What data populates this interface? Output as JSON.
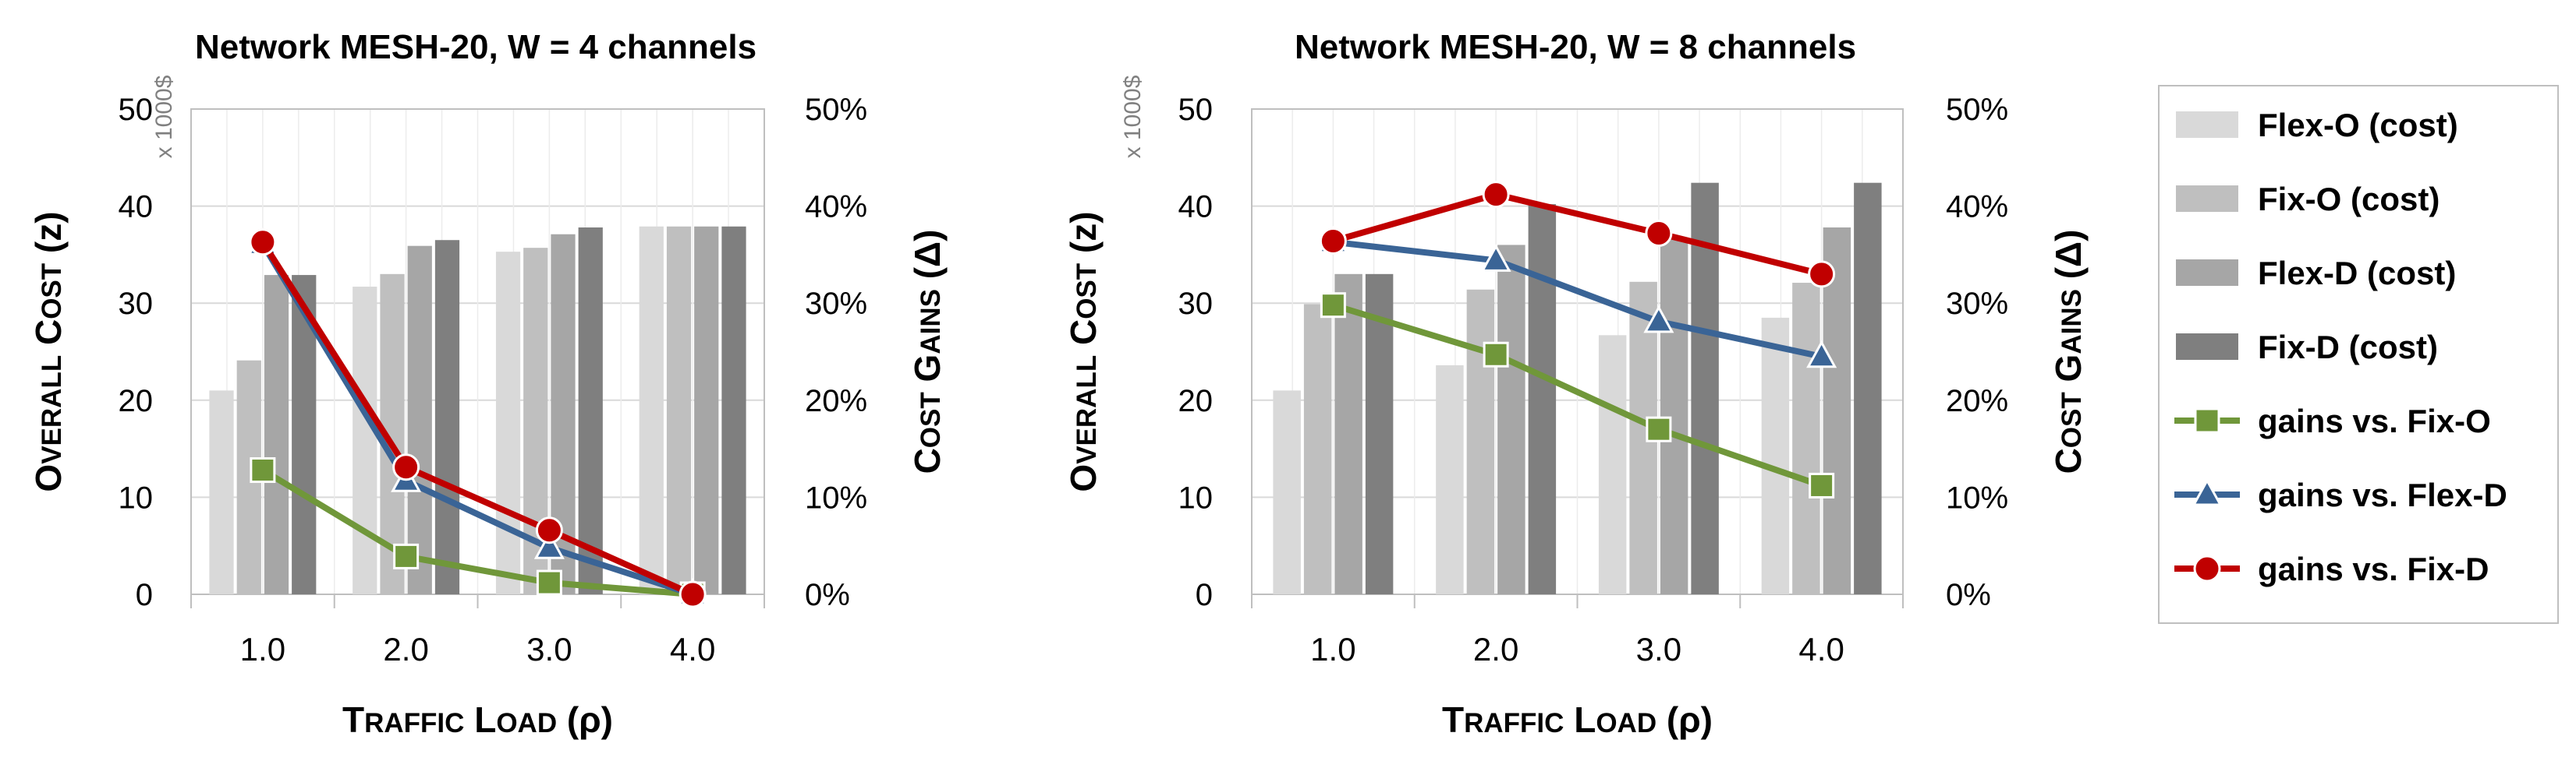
{
  "chart_data": [
    {
      "type": "bar",
      "title": "Network MESH-20, W = 4 channels",
      "categories": [
        "1.0",
        "2.0",
        "3.0",
        "4.0"
      ],
      "xlabel": "Traffic Load (ρ)",
      "ylabel": "Overall Cost (z)",
      "y2label": "Cost Gains (Δ)",
      "unit_note": "x 1000$",
      "ylim": [
        0,
        50
      ],
      "yticks": [
        "0",
        "10",
        "20",
        "30",
        "40",
        "50"
      ],
      "y2lim": [
        0,
        0.5
      ],
      "y2ticks": [
        "0%",
        "10%",
        "20%",
        "30%",
        "40%",
        "50%"
      ],
      "grid": true,
      "bar_series": [
        {
          "name": "Flex-O (cost)",
          "values": [
            21,
            31.7,
            35.3,
            37.9
          ]
        },
        {
          "name": "Fix-O (cost)",
          "values": [
            24.1,
            33,
            35.7,
            37.9
          ]
        },
        {
          "name": "Flex-D (cost)",
          "values": [
            32.9,
            35.9,
            37.1,
            37.9
          ]
        },
        {
          "name": "Fix-D (cost)",
          "values": [
            32.9,
            36.5,
            37.8,
            37.9
          ]
        }
      ],
      "line_series": [
        {
          "name": "gains vs. Fix-O",
          "values": [
            0.128,
            0.039,
            0.012,
            0.0
          ]
        },
        {
          "name": "gains vs. Flex-D",
          "values": [
            0.361,
            0.117,
            0.048,
            0.0
          ]
        },
        {
          "name": "gains vs. Fix-D",
          "values": [
            0.363,
            0.131,
            0.066,
            0.0
          ]
        }
      ]
    },
    {
      "type": "bar",
      "title": "Network MESH-20, W = 8 channels",
      "categories": [
        "1.0",
        "2.0",
        "3.0",
        "4.0"
      ],
      "xlabel": "Traffic Load (ρ)",
      "ylabel": "Overall Cost (z)",
      "y2label": "Cost Gains (Δ)",
      "unit_note": "x 1000$",
      "ylim": [
        0,
        50
      ],
      "yticks": [
        "0",
        "10",
        "20",
        "30",
        "40",
        "50"
      ],
      "y2lim": [
        0,
        0.5
      ],
      "y2ticks": [
        "0%",
        "10%",
        "20%",
        "30%",
        "40%",
        "50%"
      ],
      "grid": true,
      "bar_series": [
        {
          "name": "Flex-O (cost)",
          "values": [
            21,
            23.6,
            26.7,
            28.5
          ]
        },
        {
          "name": "Fix-O (cost)",
          "values": [
            29.9,
            31.4,
            32.2,
            32.1
          ]
        },
        {
          "name": "Flex-D (cost)",
          "values": [
            33,
            36,
            36.6,
            37.8
          ]
        },
        {
          "name": "Fix-D (cost)",
          "values": [
            33,
            40.2,
            42.4,
            42.4
          ]
        }
      ],
      "line_series": [
        {
          "name": "gains vs. Fix-O",
          "values": [
            0.298,
            0.247,
            0.17,
            0.112
          ]
        },
        {
          "name": "gains vs. Flex-D",
          "values": [
            0.363,
            0.344,
            0.281,
            0.245
          ]
        },
        {
          "name": "gains vs. Fix-D",
          "values": [
            0.364,
            0.412,
            0.372,
            0.33
          ]
        }
      ]
    }
  ],
  "legend": {
    "position": "right",
    "entries": [
      {
        "label": "Flex-O (cost)",
        "kind": "bar",
        "color": "#d9d9d9"
      },
      {
        "label": "Fix-O (cost)",
        "kind": "bar",
        "color": "#bfbfbf"
      },
      {
        "label": "Flex-D (cost)",
        "kind": "bar",
        "color": "#a6a6a6"
      },
      {
        "label": "Fix-D (cost)",
        "kind": "bar",
        "color": "#7f7f7f"
      },
      {
        "label": "gains vs. Fix-O",
        "kind": "line",
        "marker": "square",
        "color": "#70973a"
      },
      {
        "label": "gains vs. Flex-D",
        "kind": "line",
        "marker": "triangle",
        "color": "#3a6496"
      },
      {
        "label": "gains vs. Fix-D",
        "kind": "line",
        "marker": "circle",
        "color": "#c00000"
      }
    ]
  },
  "colors": {
    "bars": [
      "#d9d9d9",
      "#bfbfbf",
      "#a6a6a6",
      "#7f7f7f"
    ],
    "lines": [
      "#70973a",
      "#3a6496",
      "#c00000"
    ],
    "markers": [
      "square",
      "triangle",
      "circle"
    ],
    "grid": "#d9d9d9",
    "axis": "#bfbfbf",
    "text": "#000000"
  }
}
